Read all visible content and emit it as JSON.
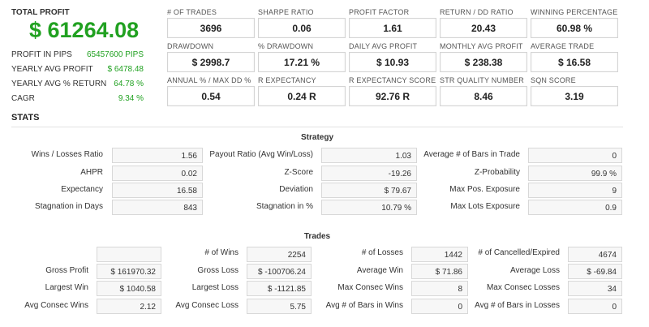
{
  "summary": {
    "total_profit_label": "TOTAL PROFIT",
    "total_profit_value": "$ 61264.08",
    "rows": [
      {
        "label": "PROFIT IN PIPS",
        "value": "65457600 PIPS"
      },
      {
        "label": "YEARLY AVG PROFIT",
        "value": "$ 6478.48"
      },
      {
        "label": "YEARLY AVG % RETURN",
        "value": "64.78 %"
      },
      {
        "label": "CAGR",
        "value": "9.34 %"
      }
    ]
  },
  "metrics": [
    {
      "label": "# OF TRADES",
      "value": "3696"
    },
    {
      "label": "SHARPE RATIO",
      "value": "0.06"
    },
    {
      "label": "PROFIT FACTOR",
      "value": "1.61"
    },
    {
      "label": "RETURN / DD RATIO",
      "value": "20.43"
    },
    {
      "label": "WINNING PERCENTAGE",
      "value": "60.98 %"
    },
    {
      "label": "DRAWDOWN",
      "value": "$ 2998.7"
    },
    {
      "label": "% DRAWDOWN",
      "value": "17.21 %"
    },
    {
      "label": "DAILY AVG PROFIT",
      "value": "$ 10.93"
    },
    {
      "label": "MONTHLY AVG PROFIT",
      "value": "$ 238.38"
    },
    {
      "label": "AVERAGE TRADE",
      "value": "$ 16.58"
    },
    {
      "label": "ANNUAL % / MAX DD %",
      "value": "0.54"
    },
    {
      "label": "R EXPECTANCY",
      "value": "0.24 R"
    },
    {
      "label": "R EXPECTANCY SCORE",
      "value": "92.76 R"
    },
    {
      "label": "STR QUALITY NUMBER",
      "value": "8.46"
    },
    {
      "label": "SQN SCORE",
      "value": "3.19"
    }
  ],
  "stats_title": "STATS",
  "strategy": {
    "title": "Strategy",
    "rows": [
      [
        {
          "label": "Wins / Losses Ratio",
          "value": "1.56"
        },
        {
          "label": "Payout Ratio (Avg Win/Loss)",
          "value": "1.03"
        },
        {
          "label": "Average # of Bars in Trade",
          "value": "0"
        }
      ],
      [
        {
          "label": "AHPR",
          "value": "0.02"
        },
        {
          "label": "Z-Score",
          "value": "-19.26"
        },
        {
          "label": "Z-Probability",
          "value": "99.9 %"
        }
      ],
      [
        {
          "label": "Expectancy",
          "value": "16.58"
        },
        {
          "label": "Deviation",
          "value": "$ 79.67"
        },
        {
          "label": "Max Pos. Exposure",
          "value": "9"
        }
      ],
      [
        {
          "label": "Stagnation in Days",
          "value": "843"
        },
        {
          "label": "Stagnation in %",
          "value": "10.79 %"
        },
        {
          "label": "Max Lots Exposure",
          "value": "0.9"
        }
      ]
    ]
  },
  "trades": {
    "title": "Trades",
    "rows": [
      [
        {
          "label": "",
          "value": ""
        },
        {
          "label": "# of Wins",
          "value": "2254"
        },
        {
          "label": "# of Losses",
          "value": "1442"
        },
        {
          "label": "# of Cancelled/Expired",
          "value": "4674"
        }
      ],
      [
        {
          "label": "Gross Profit",
          "value": "$ 161970.32"
        },
        {
          "label": "Gross Loss",
          "value": "$ -100706.24"
        },
        {
          "label": "Average Win",
          "value": "$ 71.86"
        },
        {
          "label": "Average Loss",
          "value": "$ -69.84"
        }
      ],
      [
        {
          "label": "Largest Win",
          "value": "$ 1040.58"
        },
        {
          "label": "Largest Loss",
          "value": "$ -1121.85"
        },
        {
          "label": "Max Consec Wins",
          "value": "8"
        },
        {
          "label": "Max Consec Losses",
          "value": "34"
        }
      ],
      [
        {
          "label": "Avg Consec Wins",
          "value": "2.12"
        },
        {
          "label": "Avg Consec Loss",
          "value": "5.75"
        },
        {
          "label": "Avg # of Bars in Wins",
          "value": "0"
        },
        {
          "label": "Avg # of Bars in Losses",
          "value": "0"
        }
      ]
    ]
  }
}
